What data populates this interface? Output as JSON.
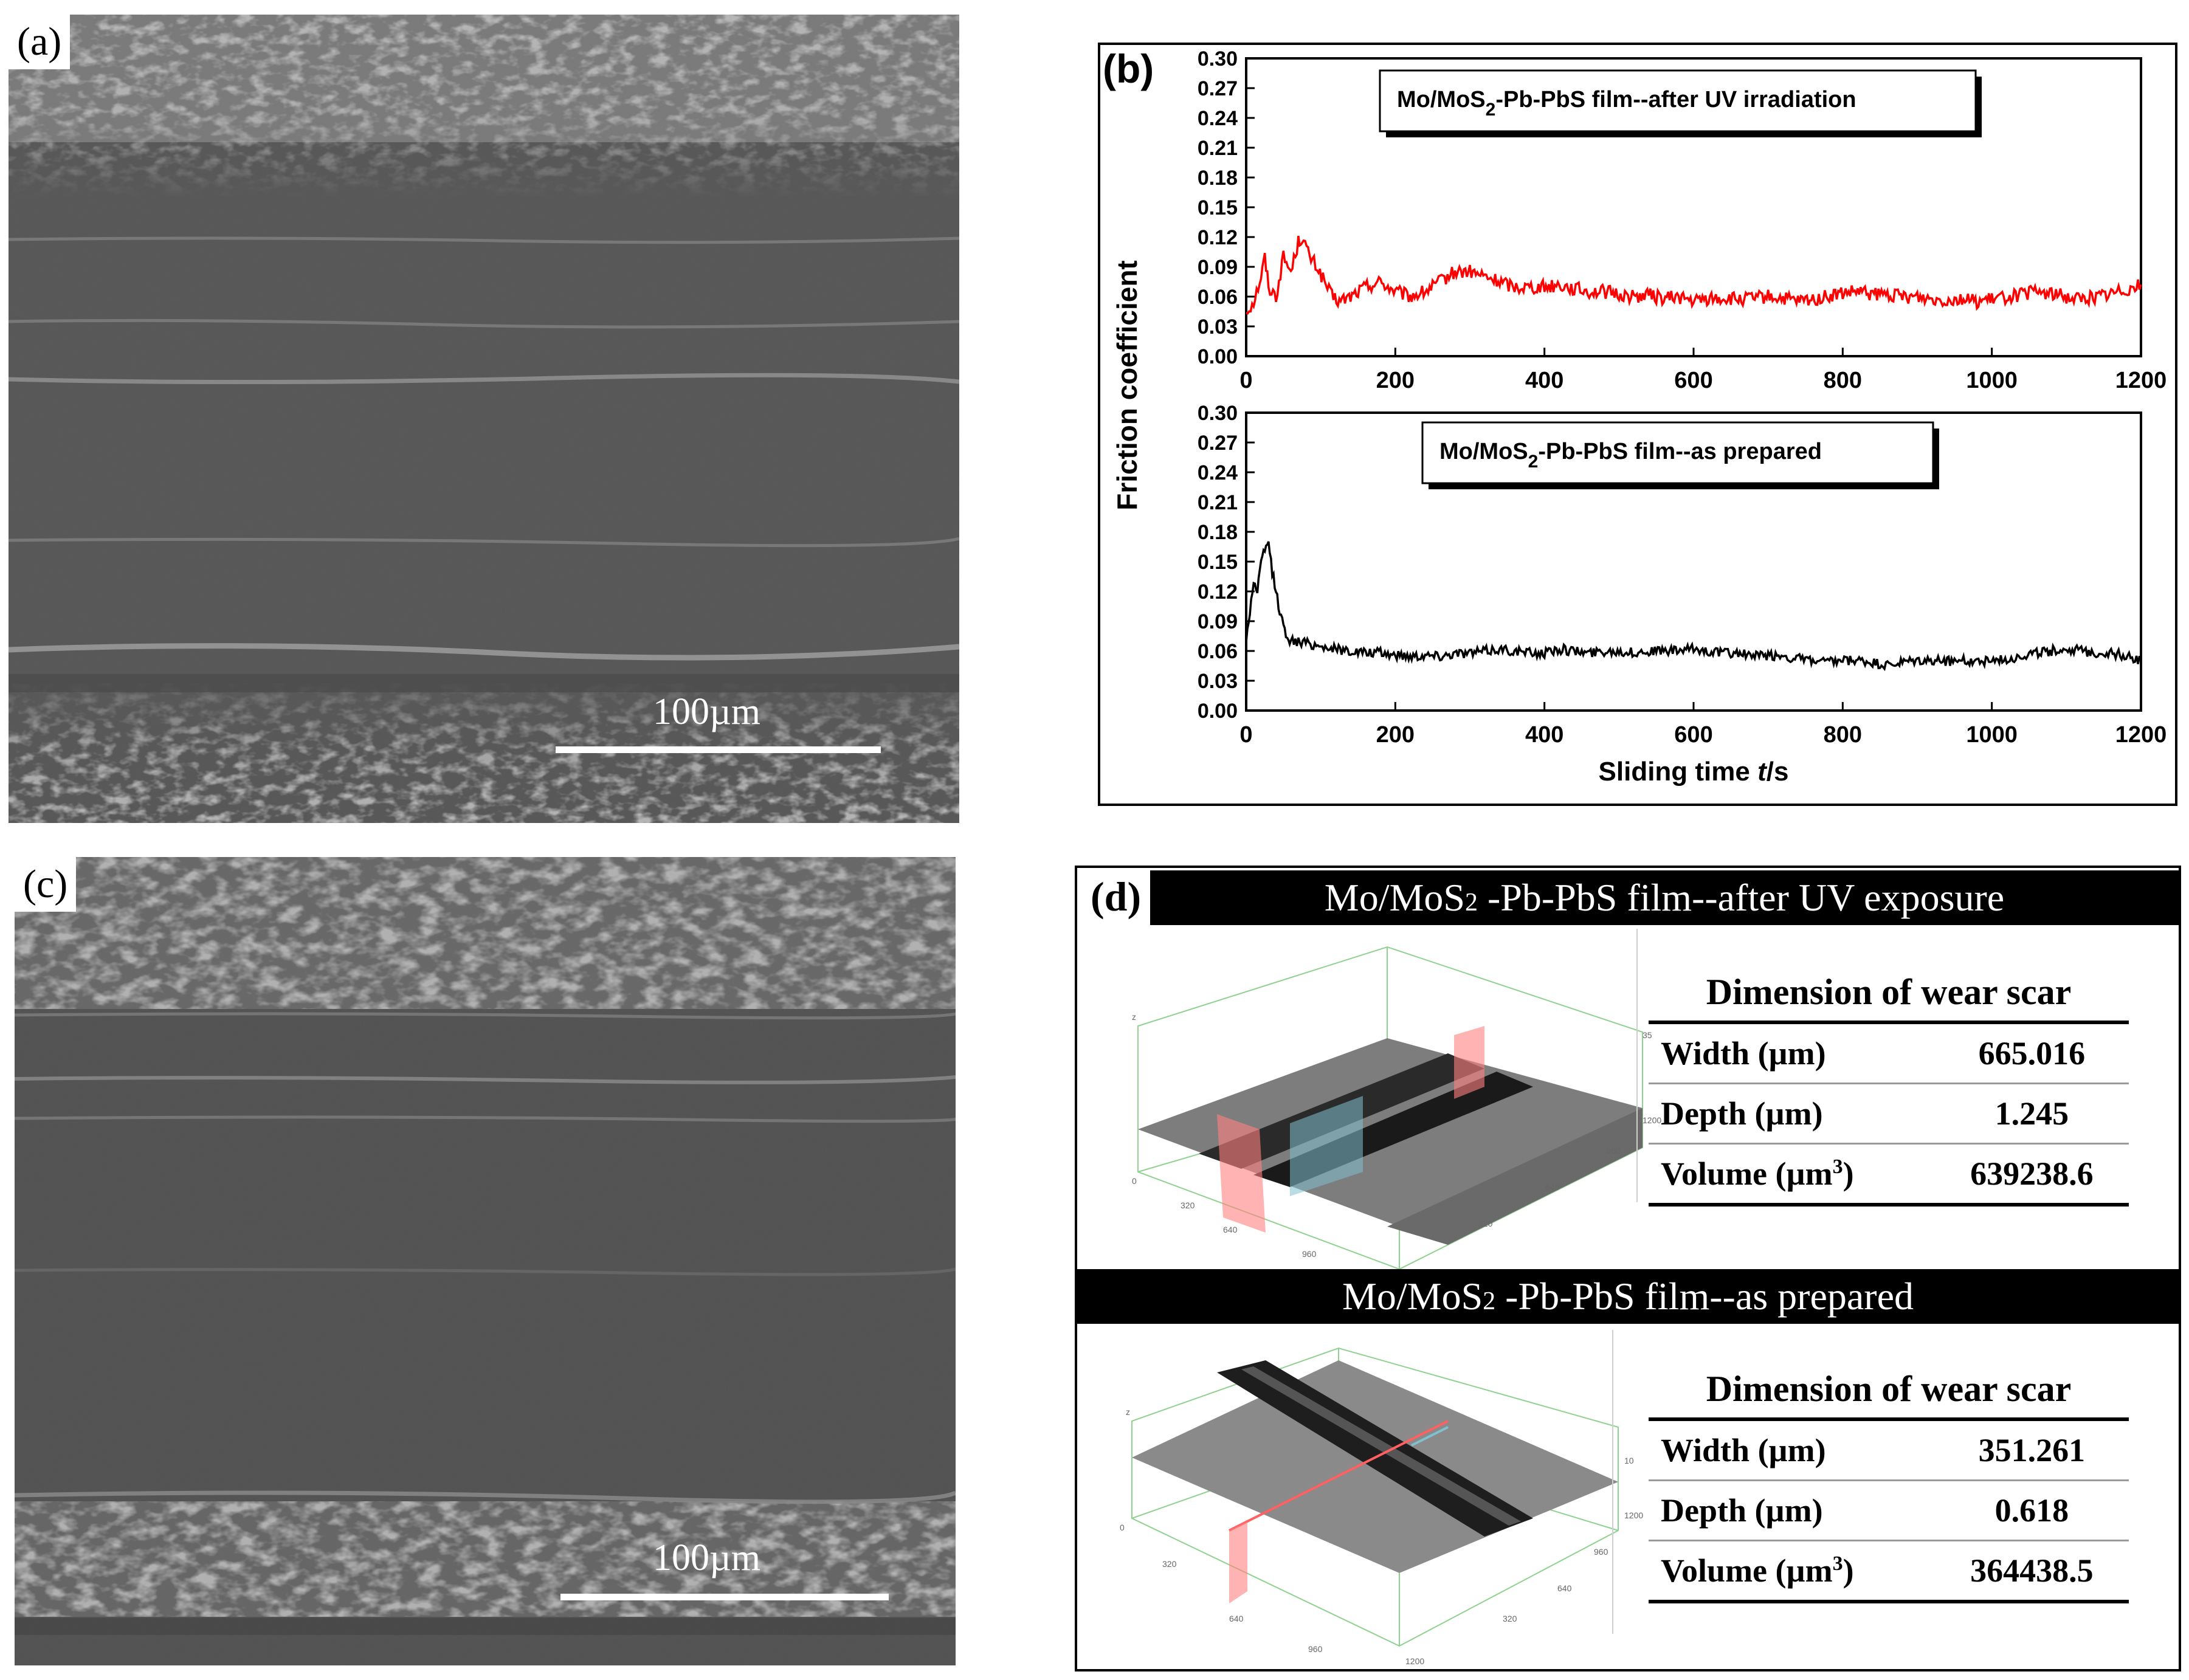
{
  "panel_a": {
    "label": "(a)",
    "scale_bar": "100µm"
  },
  "panel_c": {
    "label": "(c)",
    "scale_bar": "100µm"
  },
  "panel_b": {
    "label": "(b)",
    "chart_data": {
      "type": "line",
      "ylabel": "Friction coefficient",
      "xlabel": "Sliding time t/s",
      "xlim": [
        0,
        1200
      ],
      "ylim": [
        0,
        0.3
      ],
      "xticks": [
        "0",
        "200",
        "400",
        "600",
        "800",
        "1000",
        "1200"
      ],
      "yticks": [
        "0.00",
        "0.03",
        "0.06",
        "0.09",
        "0.12",
        "0.15",
        "0.18",
        "0.21",
        "0.24",
        "0.27",
        "0.30"
      ],
      "series": [
        {
          "name": "Mo/MoS2-Pb-PbS film--after UV irradiation",
          "legend_main": "Mo/MoS",
          "legend_sub": "2",
          "legend_rest": "-Pb-PbS film--after UV irradiation",
          "color": "#ff0000",
          "points": [
            [
              0,
              0.045
            ],
            [
              10,
              0.055
            ],
            [
              20,
              0.08
            ],
            [
              25,
              0.1
            ],
            [
              30,
              0.07
            ],
            [
              40,
              0.06
            ],
            [
              50,
              0.1
            ],
            [
              60,
              0.085
            ],
            [
              70,
              0.115
            ],
            [
              75,
              0.12
            ],
            [
              85,
              0.1
            ],
            [
              95,
              0.09
            ],
            [
              105,
              0.075
            ],
            [
              115,
              0.06
            ],
            [
              125,
              0.055
            ],
            [
              140,
              0.06
            ],
            [
              160,
              0.07
            ],
            [
              180,
              0.075
            ],
            [
              200,
              0.065
            ],
            [
              220,
              0.06
            ],
            [
              240,
              0.065
            ],
            [
              260,
              0.075
            ],
            [
              280,
              0.085
            ],
            [
              300,
              0.085
            ],
            [
              320,
              0.08
            ],
            [
              340,
              0.075
            ],
            [
              360,
              0.07
            ],
            [
              380,
              0.07
            ],
            [
              400,
              0.07
            ],
            [
              420,
              0.072
            ],
            [
              440,
              0.068
            ],
            [
              460,
              0.065
            ],
            [
              480,
              0.065
            ],
            [
              500,
              0.062
            ],
            [
              520,
              0.06
            ],
            [
              540,
              0.062
            ],
            [
              560,
              0.058
            ],
            [
              580,
              0.06
            ],
            [
              600,
              0.055
            ],
            [
              620,
              0.058
            ],
            [
              640,
              0.058
            ],
            [
              660,
              0.057
            ],
            [
              680,
              0.058
            ],
            [
              700,
              0.06
            ],
            [
              720,
              0.058
            ],
            [
              740,
              0.055
            ],
            [
              760,
              0.057
            ],
            [
              780,
              0.06
            ],
            [
              800,
              0.063
            ],
            [
              820,
              0.065
            ],
            [
              840,
              0.062
            ],
            [
              860,
              0.062
            ],
            [
              880,
              0.06
            ],
            [
              900,
              0.06
            ],
            [
              920,
              0.058
            ],
            [
              940,
              0.057
            ],
            [
              960,
              0.058
            ],
            [
              980,
              0.055
            ],
            [
              1000,
              0.057
            ],
            [
              1020,
              0.06
            ],
            [
              1040,
              0.062
            ],
            [
              1060,
              0.065
            ],
            [
              1080,
              0.063
            ],
            [
              1100,
              0.06
            ],
            [
              1120,
              0.058
            ],
            [
              1140,
              0.06
            ],
            [
              1160,
              0.063
            ],
            [
              1180,
              0.068
            ],
            [
              1200,
              0.072
            ]
          ],
          "noise": 0.007
        },
        {
          "name": "Mo/MoS2-Pb-PbS film--as prepared",
          "legend_main": "Mo/MoS",
          "legend_sub": "2",
          "legend_rest": "-Pb-PbS film--as prepared",
          "color": "#000000",
          "points": [
            [
              0,
              0.07
            ],
            [
              5,
              0.1
            ],
            [
              10,
              0.13
            ],
            [
              15,
              0.12
            ],
            [
              20,
              0.15
            ],
            [
              25,
              0.16
            ],
            [
              30,
              0.17
            ],
            [
              35,
              0.14
            ],
            [
              40,
              0.12
            ],
            [
              45,
              0.1
            ],
            [
              50,
              0.085
            ],
            [
              55,
              0.075
            ],
            [
              60,
              0.07
            ],
            [
              80,
              0.068
            ],
            [
              100,
              0.065
            ],
            [
              120,
              0.062
            ],
            [
              140,
              0.06
            ],
            [
              160,
              0.058
            ],
            [
              180,
              0.058
            ],
            [
              200,
              0.056
            ],
            [
              220,
              0.055
            ],
            [
              240,
              0.056
            ],
            [
              260,
              0.055
            ],
            [
              280,
              0.058
            ],
            [
              300,
              0.058
            ],
            [
              320,
              0.06
            ],
            [
              340,
              0.062
            ],
            [
              360,
              0.06
            ],
            [
              380,
              0.058
            ],
            [
              400,
              0.058
            ],
            [
              420,
              0.062
            ],
            [
              440,
              0.06
            ],
            [
              460,
              0.058
            ],
            [
              480,
              0.06
            ],
            [
              500,
              0.06
            ],
            [
              520,
              0.058
            ],
            [
              540,
              0.06
            ],
            [
              560,
              0.06
            ],
            [
              580,
              0.06
            ],
            [
              600,
              0.062
            ],
            [
              620,
              0.06
            ],
            [
              640,
              0.058
            ],
            [
              660,
              0.058
            ],
            [
              680,
              0.055
            ],
            [
              700,
              0.055
            ],
            [
              720,
              0.055
            ],
            [
              740,
              0.052
            ],
            [
              760,
              0.05
            ],
            [
              780,
              0.048
            ],
            [
              800,
              0.05
            ],
            [
              820,
              0.05
            ],
            [
              840,
              0.048
            ],
            [
              860,
              0.045
            ],
            [
              880,
              0.048
            ],
            [
              900,
              0.05
            ],
            [
              920,
              0.05
            ],
            [
              940,
              0.05
            ],
            [
              960,
              0.05
            ],
            [
              980,
              0.05
            ],
            [
              1000,
              0.05
            ],
            [
              1020,
              0.052
            ],
            [
              1040,
              0.055
            ],
            [
              1060,
              0.058
            ],
            [
              1080,
              0.06
            ],
            [
              1100,
              0.062
            ],
            [
              1120,
              0.06
            ],
            [
              1140,
              0.058
            ],
            [
              1160,
              0.058
            ],
            [
              1180,
              0.055
            ],
            [
              1200,
              0.05
            ]
          ],
          "noise": 0.005
        }
      ]
    }
  },
  "panel_d": {
    "label": "(d)",
    "sections": [
      {
        "title_pre": "Mo/MoS",
        "title_sub": "2",
        "title_post": " -Pb-PbS film--after UV exposure",
        "table_title": "Dimension of wear scar",
        "rows": [
          {
            "label": "Width (µm)",
            "value": "665.016"
          },
          {
            "label": "Depth (µm)",
            "value": "1.245"
          },
          {
            "label_pre": "Volume (µm",
            "label_sup": "3",
            "label_post": ")",
            "value": "639238.6"
          }
        ]
      },
      {
        "title_pre": "Mo/MoS",
        "title_sub": "2",
        "title_post": " -Pb-PbS film--as prepared",
        "table_title": "Dimension of wear scar",
        "rows": [
          {
            "label": "Width (µm)",
            "value": "351.261"
          },
          {
            "label": "Depth (µm)",
            "value": "0.618"
          },
          {
            "label_pre": "Volume (µm",
            "label_sup": "3",
            "label_post": ")",
            "value": "364438.5"
          }
        ]
      }
    ]
  }
}
